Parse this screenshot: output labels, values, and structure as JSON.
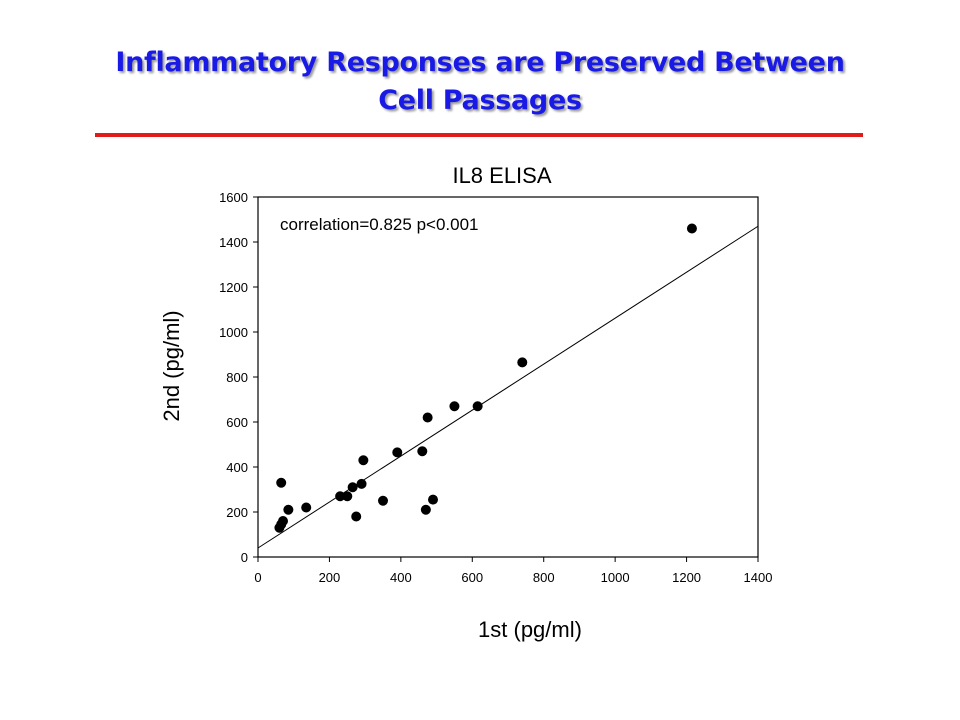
{
  "slide": {
    "title_line1": "Inflammatory Responses are Preserved Between",
    "title_line2": "Cell Passages",
    "title_color": "#1a1ae6",
    "rule_color": "#e11b1b"
  },
  "chart_data": {
    "type": "scatter",
    "title": "IL8 ELISA",
    "xlabel": "1st (pg/ml)",
    "ylabel": "2nd (pg/ml)",
    "annotation": "correlation=0.825 p<0.001",
    "xlim": [
      0,
      1400
    ],
    "ylim": [
      0,
      1600
    ],
    "xticks": [
      0,
      200,
      400,
      600,
      800,
      1000,
      1200,
      1400
    ],
    "yticks": [
      0,
      200,
      400,
      600,
      800,
      1000,
      1200,
      1400,
      1600
    ],
    "grid": false,
    "marker_color": "#000000",
    "points": [
      {
        "x": 60,
        "y": 130
      },
      {
        "x": 65,
        "y": 145
      },
      {
        "x": 70,
        "y": 160
      },
      {
        "x": 65,
        "y": 330
      },
      {
        "x": 85,
        "y": 210
      },
      {
        "x": 135,
        "y": 220
      },
      {
        "x": 230,
        "y": 270
      },
      {
        "x": 250,
        "y": 270
      },
      {
        "x": 265,
        "y": 310
      },
      {
        "x": 275,
        "y": 180
      },
      {
        "x": 290,
        "y": 325
      },
      {
        "x": 295,
        "y": 430
      },
      {
        "x": 350,
        "y": 250
      },
      {
        "x": 390,
        "y": 465
      },
      {
        "x": 460,
        "y": 470
      },
      {
        "x": 470,
        "y": 210
      },
      {
        "x": 475,
        "y": 620
      },
      {
        "x": 490,
        "y": 255
      },
      {
        "x": 550,
        "y": 670
      },
      {
        "x": 615,
        "y": 670
      },
      {
        "x": 740,
        "y": 865
      },
      {
        "x": 1215,
        "y": 1460
      }
    ],
    "trendline": {
      "x": [
        0,
        1400
      ],
      "y": [
        40,
        1470
      ]
    }
  }
}
